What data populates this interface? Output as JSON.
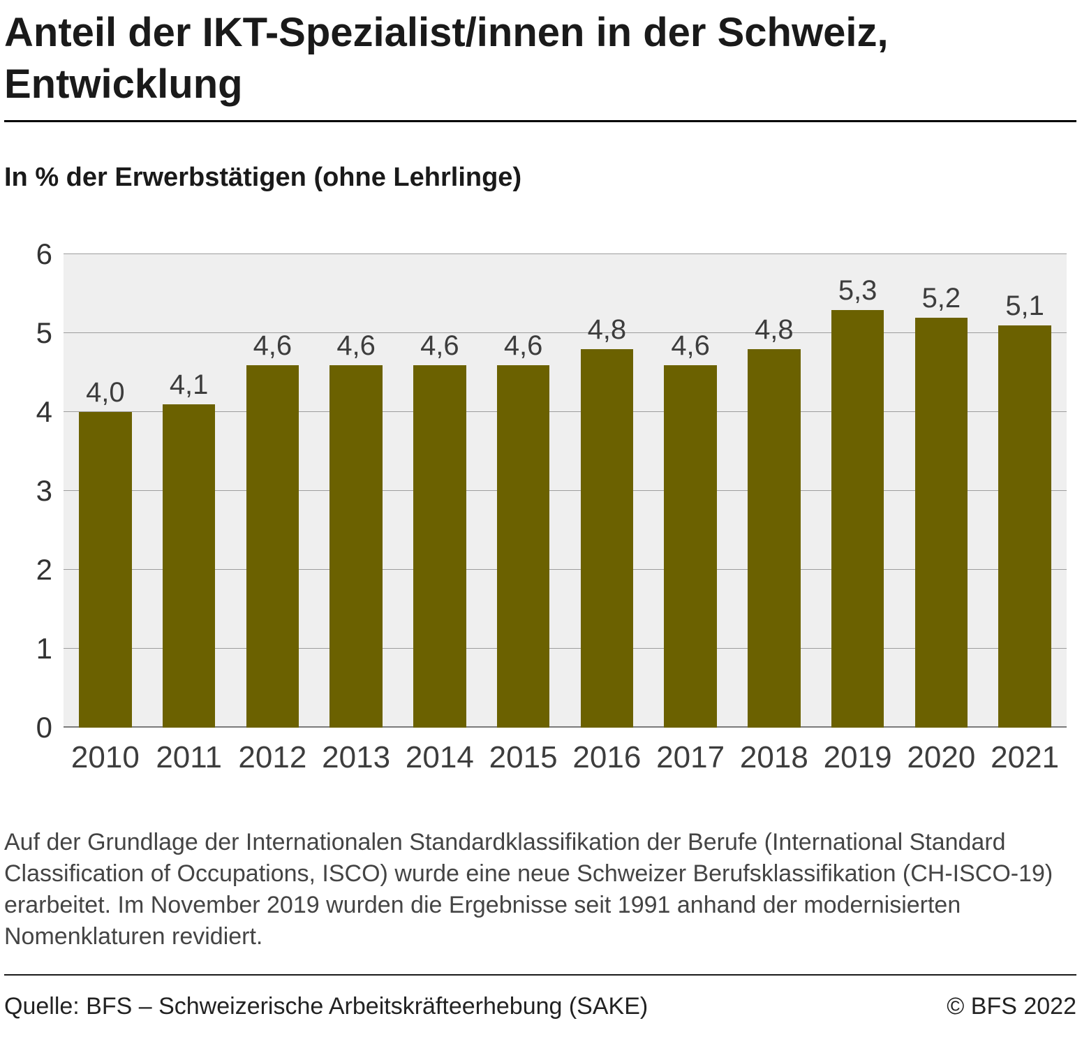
{
  "page": {
    "title": "Anteil der IKT-Spezialist/innen in der Schweiz, Entwicklung",
    "subtitle": "In % der Erwerbstätigen (ohne Lehrlinge)",
    "footnote": "Auf der Grundlage der Internationalen Standardklassifikation der Berufe (International Standard Classification of Occupations, ISCO) wurde eine neue Schweizer Berufsklassifikation (CH-ISCO-19) erarbeitet. Im November 2019 wurden die Ergebnisse seit 1991 anhand der modernisierten Nomenklaturen revidiert.",
    "source": "Quelle: BFS – Schweizerische Arbeitskräfteerhebung (SAKE)",
    "copyright": "© BFS 2022"
  },
  "chart_data": {
    "type": "bar",
    "title": "Anteil der IKT-Spezialist/innen in der Schweiz, Entwicklung",
    "subtitle": "In % der Erwerbstätigen (ohne Lehrlinge)",
    "categories": [
      "2010",
      "2011",
      "2012",
      "2013",
      "2014",
      "2015",
      "2016",
      "2017",
      "2018",
      "2019",
      "2020",
      "2021"
    ],
    "values": [
      4.0,
      4.1,
      4.6,
      4.6,
      4.6,
      4.6,
      4.8,
      4.6,
      4.8,
      5.3,
      5.2,
      5.1
    ],
    "value_labels": [
      "4,0",
      "4,1",
      "4,6",
      "4,6",
      "4,6",
      "4,6",
      "4,8",
      "4,6",
      "4,8",
      "5,3",
      "5,2",
      "5,1"
    ],
    "xlabel": "",
    "ylabel": "In % der Erwerbstätigen (ohne Lehrlinge)",
    "ylim": [
      0,
      6
    ],
    "yticks": [
      0,
      1,
      2,
      3,
      4,
      5,
      6
    ],
    "grid": true,
    "legend": "none",
    "bar_color": "#6b6100",
    "plot_bg": "#efefef",
    "gridline_color": "#9d9d9d"
  }
}
